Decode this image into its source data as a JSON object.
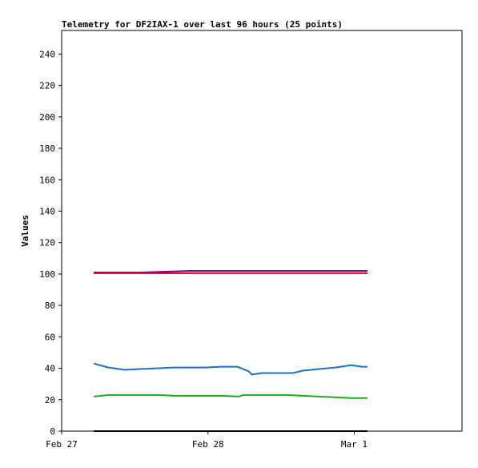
{
  "chart_data": {
    "type": "line",
    "title": "Telemetry for DF2IAX-1 over last 96 hours (25 points)",
    "xlabel": "",
    "ylabel": "Values",
    "ylim": [
      0,
      255
    ],
    "yticks": [
      0,
      20,
      40,
      60,
      80,
      100,
      120,
      140,
      160,
      180,
      200,
      220,
      240
    ],
    "xlim": [
      0,
      2.736
    ],
    "xticks": [
      {
        "label": "Feb 27",
        "value": 0
      },
      {
        "label": "Feb 28",
        "value": 1.0
      },
      {
        "label": "Mar 1",
        "value": 2.0
      }
    ],
    "grid": false,
    "legend": "none",
    "series": [
      {
        "color": "#800080",
        "x": [
          0.22,
          0.55,
          0.88,
          1.0,
          1.22,
          1.55,
          1.88,
          2.09
        ],
        "values": [
          101,
          101,
          102,
          102,
          102,
          102,
          102,
          102
        ]
      },
      {
        "color": "#cc0033",
        "x": [
          0.22,
          0.55,
          0.88,
          1.22,
          1.55,
          1.88,
          2.09
        ],
        "values": [
          100.5,
          100.5,
          100.5,
          100.5,
          100.5,
          100.5,
          100.5
        ]
      },
      {
        "color": "#1f6fc4",
        "x": [
          0.22,
          0.32,
          0.43,
          0.54,
          0.65,
          0.76,
          0.87,
          0.98,
          1.09,
          1.2,
          1.28,
          1.3,
          1.37,
          1.47,
          1.58,
          1.65,
          1.76,
          1.87,
          1.98,
          2.05,
          2.09
        ],
        "values": [
          43,
          40.5,
          39,
          39.5,
          40,
          40.5,
          40.5,
          40.5,
          41,
          41,
          38,
          36,
          37,
          37,
          37,
          38.5,
          39.5,
          40.5,
          42,
          41,
          41
        ]
      },
      {
        "color": "#22aa22",
        "x": [
          0.22,
          0.32,
          0.43,
          0.55,
          0.66,
          0.77,
          0.88,
          0.99,
          1.1,
          1.21,
          1.24,
          1.32,
          1.43,
          1.54,
          1.65,
          1.76,
          1.87,
          1.98,
          2.09
        ],
        "values": [
          22,
          23,
          23,
          23,
          23,
          22.5,
          22.5,
          22.5,
          22.5,
          22,
          23,
          23,
          23,
          23,
          22.5,
          22,
          21.5,
          21,
          21
        ]
      },
      {
        "color": "#000000",
        "x": [
          0.22,
          2.09
        ],
        "values": [
          0,
          0
        ]
      }
    ]
  }
}
